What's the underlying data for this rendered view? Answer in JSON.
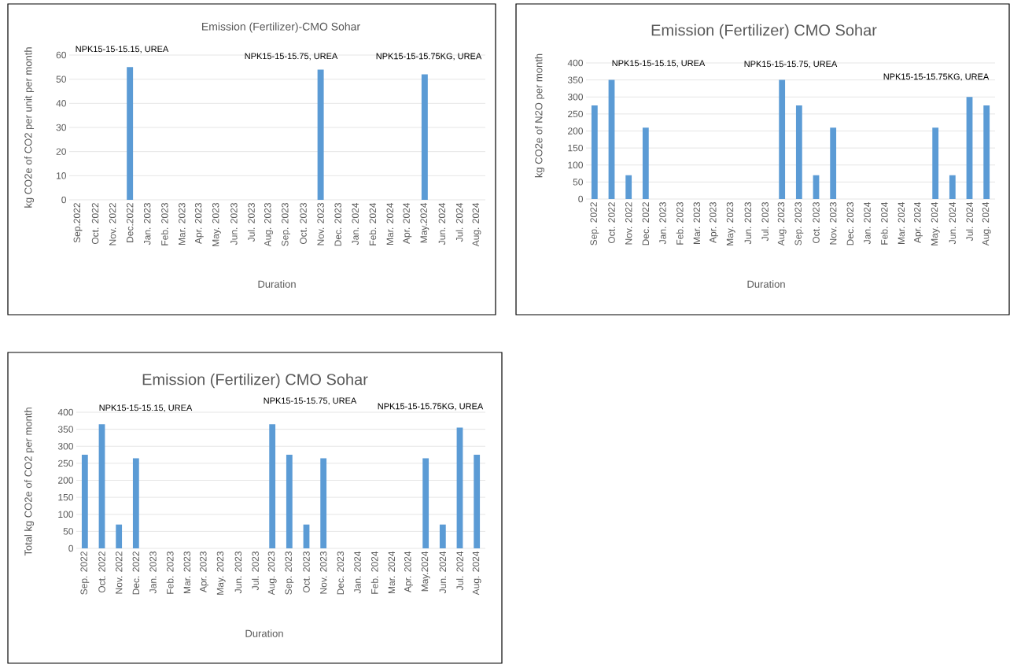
{
  "chart_data": [
    {
      "type": "bar",
      "title": "Emission (Fertilizer)-CMO Sohar",
      "xlabel": "Duration",
      "ylabel": "kg CO2e of CO2 per unit per month",
      "categories": [
        "Sep.2022",
        "Oct. 2022",
        "Nov. 2022",
        "Dec.2022",
        "Jan. 2023",
        "Feb. 2023",
        "Mar. 2023",
        "Apr. 2023",
        "May. 2023",
        "Jun. 2023",
        "Jul. 2023",
        "Aug. 2023",
        "Sep. 2023",
        "Oct. 2023",
        "Nov. 2023",
        "Dec. 2023",
        "Jan. 2024",
        "Feb. 2024",
        "Mar. 2024",
        "Apr. 2024",
        "May.2024",
        "Jun. 2024",
        "Jul. 2024",
        "Aug. 2024"
      ],
      "values": [
        null,
        null,
        null,
        55,
        null,
        null,
        null,
        null,
        null,
        null,
        null,
        null,
        null,
        null,
        54,
        null,
        null,
        null,
        null,
        null,
        52,
        null,
        null,
        null
      ],
      "color": "#5b9bd5",
      "ylim": [
        0,
        60
      ],
      "yticks": [
        0,
        10,
        20,
        30,
        40,
        50,
        60
      ],
      "grid": "y",
      "annotations": [
        "NPK15-15-15.15, UREA",
        "NPK15-15-15.75, UREA",
        "NPK15-15-15.75KG, UREA"
      ]
    },
    {
      "type": "bar",
      "title": "Emission (Fertilizer) CMO Sohar",
      "xlabel": "Duration",
      "ylabel": "kg CO2e of N2O  per month",
      "categories": [
        "Sep. 2022",
        "Oct. 2022",
        "Nov. 2022",
        "Dec. 2022",
        "Jan. 2023",
        "Feb. 2023",
        "Mar. 2023",
        "Apr. 2023",
        "May. 2023",
        "Jun. 2023",
        "Jul. 2023",
        "Aug. 2023",
        "Sep. 2023",
        "Oct. 2023",
        "Nov. 2023",
        "Dec. 2023",
        "Jan. 2024",
        "Feb. 2024",
        "Mar. 2024",
        "Apr. 2024",
        "May. 2024",
        "Jun. 2024",
        "Jul. 2024",
        "Aug. 2024"
      ],
      "values": [
        275,
        350,
        70,
        210,
        null,
        null,
        null,
        null,
        null,
        null,
        null,
        350,
        275,
        70,
        210,
        null,
        null,
        null,
        null,
        null,
        210,
        70,
        300,
        275
      ],
      "color": "#5b9bd5",
      "ylim": [
        0,
        400
      ],
      "yticks": [
        0,
        50,
        100,
        150,
        200,
        250,
        300,
        350,
        400
      ],
      "grid": "y",
      "annotations": [
        "NPK15-15-15.15, UREA",
        "NPK15-15-15.75, UREA",
        "NPK15-15-15.75KG, UREA"
      ]
    },
    {
      "type": "bar",
      "title": "Emission (Fertilizer) CMO Sohar",
      "xlabel": "Duration",
      "ylabel": "Total kg CO2e of CO2  per month",
      "categories": [
        "Sep. 2022",
        "Oct. 2022",
        "Nov. 2022",
        "Dec. 2022",
        "Jan. 2023",
        "Feb. 2023",
        "Mar. 2023",
        "Apr. 2023",
        "May. 2023",
        "Jun. 2023",
        "Jul. 2023",
        "Aug. 2023",
        "Sep. 2023",
        "Oct. 2023",
        "Nov. 2023",
        "Dec. 2023",
        "Jan. 2024",
        "Feb. 2024",
        "Mar. 2024",
        "Apr. 2024",
        "May.2024",
        "Jun. 2024",
        "Jul. 2024",
        "Aug. 2024"
      ],
      "values": [
        275,
        365,
        70,
        265,
        null,
        null,
        null,
        null,
        null,
        null,
        null,
        365,
        275,
        70,
        265,
        null,
        null,
        null,
        null,
        null,
        265,
        70,
        355,
        275
      ],
      "color": "#5b9bd5",
      "ylim": [
        0,
        400
      ],
      "yticks": [
        0,
        50,
        100,
        150,
        200,
        250,
        300,
        350,
        400
      ],
      "grid": "y",
      "annotations": [
        "NPK15-15-15.15, UREA",
        "NPK15-15-15.75, UREA",
        "NPK15-15-15.75KG, UREA"
      ]
    }
  ]
}
